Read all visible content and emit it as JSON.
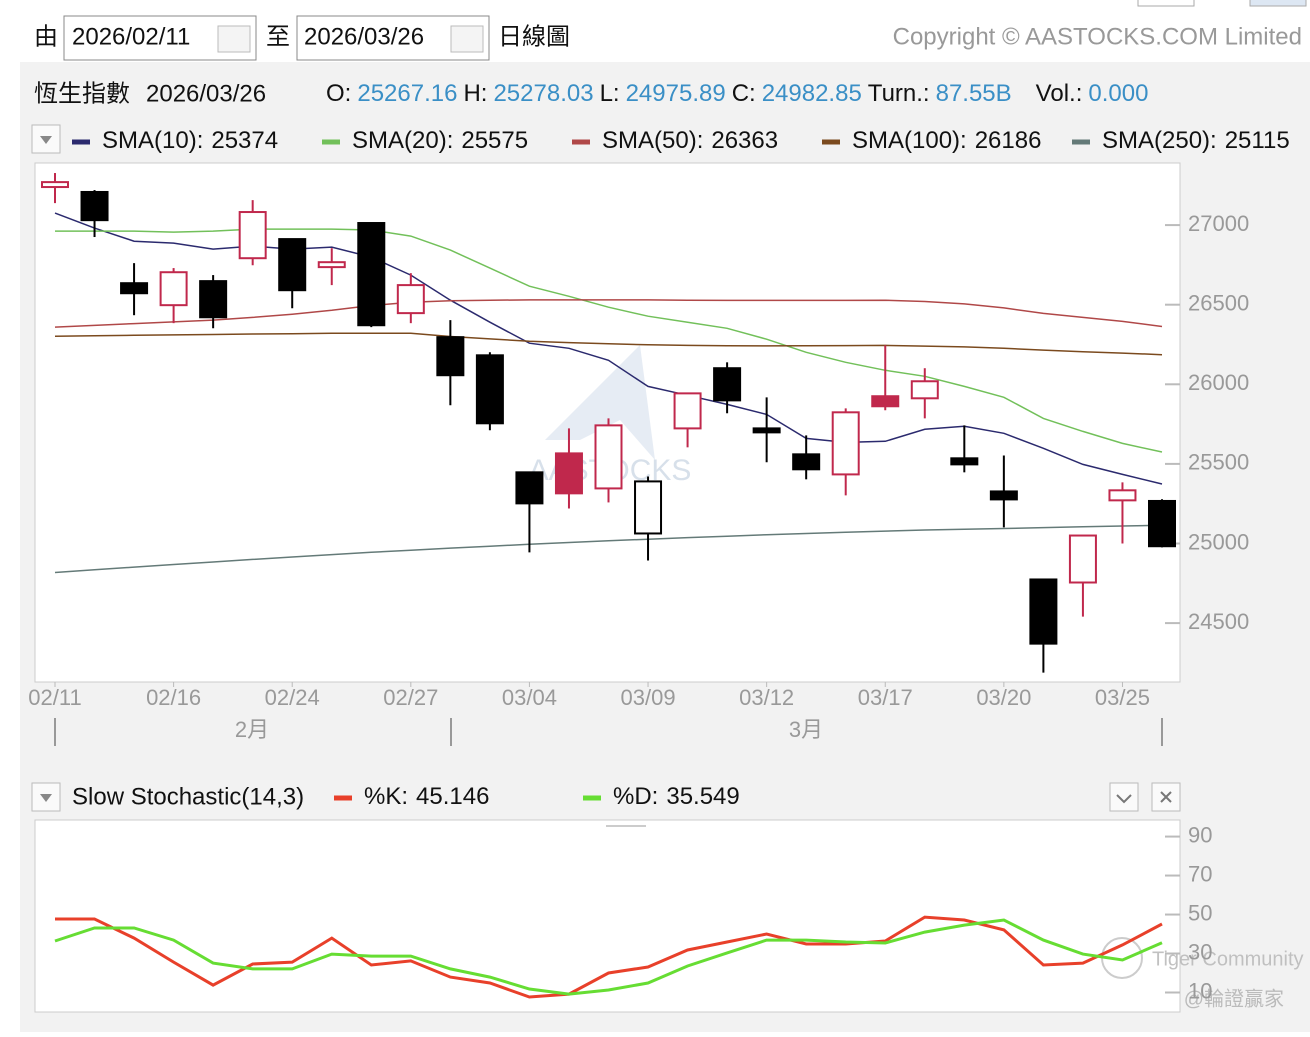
{
  "controls": {
    "from_label": "由",
    "from": "2026/02/11",
    "to_label": "至",
    "to": "2026/03/26",
    "period": "日線圖"
  },
  "copyright": "Copyright © AASTOCKS.COM Limited",
  "quote": {
    "name": "恆生指數",
    "date": "2026/03/26",
    "open_label": "O:",
    "high_label": "H:",
    "low_label": "L:",
    "close_label": "C:",
    "turnover_label": "Turn.:",
    "turnover": "87.55B",
    "volume_label": "Vol.:",
    "volume": "0.000"
  },
  "watermarks": [
    "AASTOCKS",
    "Tiger Community",
    "@輪證贏家"
  ],
  "chart_data": [
    {
      "type": "candlestick",
      "categories": [
        "02/11",
        null,
        null,
        "02/16",
        null,
        null,
        "02/24",
        null,
        null,
        "02/27",
        null,
        null,
        "03/04",
        null,
        null,
        "03/09",
        null,
        null,
        "03/12",
        null,
        null,
        "03/17",
        null,
        null,
        "03/20",
        null,
        null,
        "03/25",
        null
      ],
      "x_groups": [
        "2月",
        "3月"
      ],
      "open": [
        27239,
        27208,
        26635,
        26497,
        26648,
        26792,
        26912,
        26736,
        27013,
        26447,
        26296,
        26182,
        25447,
        25566,
        25346,
        25063,
        25723,
        26101,
        25723,
        25560,
        25434,
        25925,
        25912,
        25535,
        25327,
        24774,
        24755,
        25271,
        25267.16
      ],
      "high": [
        27327,
        27220,
        26761,
        26730,
        26686,
        27157,
        26912,
        26855,
        27013,
        26698,
        26403,
        26201,
        25447,
        25723,
        25786,
        25421,
        25943,
        26138,
        25918,
        25679,
        25849,
        26245,
        26101,
        25742,
        25553,
        24774,
        25050,
        25384,
        25278.03
      ],
      "low": [
        27138,
        26925,
        26434,
        26384,
        26352,
        26748,
        26478,
        26623,
        26359,
        26384,
        25868,
        25711,
        24944,
        25220,
        25258,
        24893,
        25604,
        25818,
        25510,
        25403,
        25302,
        25837,
        25786,
        25447,
        25101,
        24189,
        24541,
        25000,
        24975.89
      ],
      "close": [
        27270,
        27031,
        26572,
        26704,
        26421,
        27082,
        26591,
        26767,
        26371,
        26623,
        26057,
        25755,
        25252,
        25315,
        25742,
        25390,
        25943,
        25899,
        25698,
        25466,
        25824,
        25862,
        26019,
        25497,
        25277,
        24371,
        25050,
        25334,
        24982.85
      ],
      "up_color": "#c0284c",
      "down_color": "#000000",
      "series": [
        {
          "name": "SMA(10):",
          "color": "#2b2a6e",
          "values": [
            27075,
            26981,
            26899,
            26887,
            26849,
            26868,
            26849,
            26862,
            26799,
            26686,
            26528,
            26390,
            26258,
            26226,
            26151,
            25987,
            25931,
            25874,
            25811,
            25660,
            25635,
            25642,
            25717,
            25736,
            25692,
            25598,
            25497,
            25434,
            25374
          ]
        },
        {
          "name": "SMA(20):",
          "color": "#72c05a",
          "values": [
            26962,
            26962,
            26962,
            26956,
            26962,
            26975,
            26975,
            26975,
            26969,
            26931,
            26843,
            26730,
            26616,
            26553,
            26484,
            26428,
            26390,
            26352,
            26283,
            26201,
            26138,
            26088,
            26050,
            25987,
            25918,
            25786,
            25704,
            25629,
            25575
          ]
        },
        {
          "name": "SMA(50):",
          "color": "#b04848",
          "values": [
            26359,
            26370,
            26381,
            26392,
            26403,
            26420,
            26440,
            26465,
            26495,
            26515,
            26525,
            26528,
            26530,
            26530,
            26530,
            26530,
            26528,
            26527,
            26527,
            26527,
            26527,
            26528,
            26520,
            26505,
            26480,
            26445,
            26420,
            26395,
            26363
          ]
        },
        {
          "name": "SMA(100):",
          "color": "#7b4a1e",
          "values": [
            26302,
            26305,
            26308,
            26310,
            26313,
            26316,
            26318,
            26320,
            26321,
            26320,
            26300,
            26285,
            26270,
            26262,
            26255,
            26248,
            26244,
            26242,
            26241,
            26242,
            26243,
            26244,
            26240,
            26235,
            26226,
            26215,
            26205,
            26196,
            26186
          ]
        },
        {
          "name": "SMA(250):",
          "color": "#647a78",
          "values": [
            24818,
            24835,
            24852,
            24868,
            24884,
            24900,
            24915,
            24930,
            24945,
            24958,
            24971,
            24983,
            24995,
            25006,
            25017,
            25027,
            25037,
            25046,
            25055,
            25063,
            25071,
            25078,
            25085,
            25090,
            25094,
            25100,
            25105,
            25110,
            25115
          ]
        }
      ],
      "ylim": [
        24130,
        27390
      ],
      "yticks": [
        24500,
        25000,
        25500,
        26000,
        26500,
        27000
      ],
      "grid": false
    },
    {
      "type": "line",
      "title": "Slow Stochastic(14,3)",
      "series": [
        {
          "name": "%K:",
          "color": "#e8402a",
          "values": [
            47.7,
            47.7,
            37.9,
            25.6,
            13.8,
            24.6,
            25.6,
            37.9,
            24.1,
            26.2,
            17.9,
            14.9,
            7.7,
            9.2,
            20.0,
            23.1,
            31.8,
            35.9,
            40.0,
            34.9,
            34.9,
            36.4,
            48.7,
            47.2,
            42.1,
            24.1,
            25.1,
            34.4,
            45.146
          ]
        },
        {
          "name": "%D:",
          "color": "#66dd33",
          "values": [
            36.4,
            43.1,
            43.1,
            36.9,
            25.1,
            22.1,
            22.1,
            29.7,
            28.7,
            28.7,
            22.1,
            17.9,
            11.8,
            9.2,
            11.3,
            14.9,
            23.6,
            30.3,
            36.9,
            36.9,
            35.9,
            35.4,
            41.0,
            44.6,
            47.2,
            36.9,
            29.7,
            26.7,
            35.549
          ]
        }
      ],
      "ylim": [
        0,
        98.5
      ],
      "yticks": [
        10,
        30,
        50,
        70,
        90
      ],
      "grid": false
    }
  ]
}
